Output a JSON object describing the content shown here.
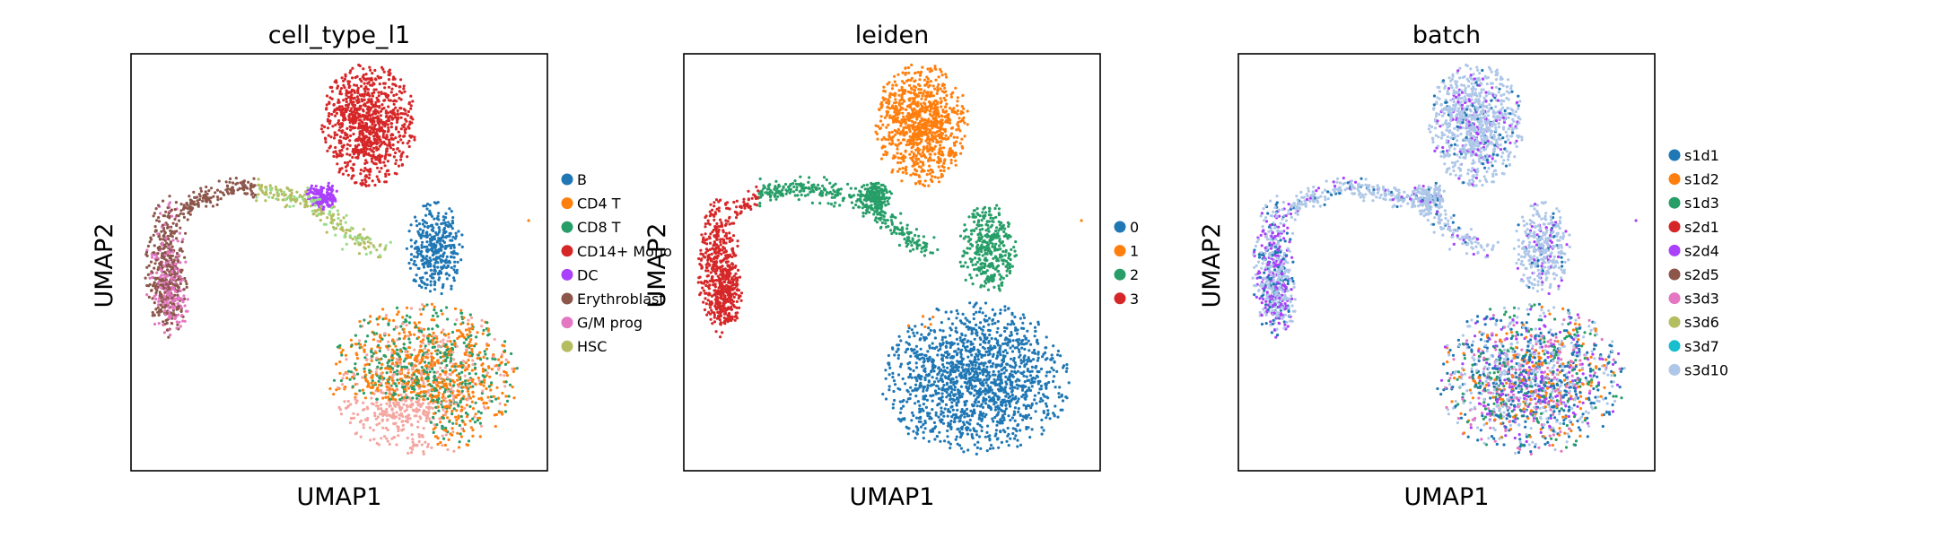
{
  "figure": {
    "panels": [
      {
        "title": "cell_type_l1",
        "xlabel": "UMAP1",
        "ylabel": "UMAP2"
      },
      {
        "title": "leiden",
        "xlabel": "UMAP1",
        "ylabel": "UMAP2"
      },
      {
        "title": "batch",
        "xlabel": "UMAP1",
        "ylabel": "UMAP2"
      }
    ]
  },
  "chart_data": [
    {
      "type": "scatter",
      "title": "cell_type_l1",
      "xlabel": "UMAP1",
      "ylabel": "UMAP2",
      "ticks": "none",
      "legend": "right",
      "legend_entries": [
        {
          "label": "B",
          "color": "#1f77b4"
        },
        {
          "label": "CD4 T",
          "color": "#ff7f0e"
        },
        {
          "label": "CD8 T",
          "color": "#279e68"
        },
        {
          "label": "CD14+ Mono",
          "color": "#d62728"
        },
        {
          "label": "DC",
          "color": "#aa40fc"
        },
        {
          "label": "Erythroblast",
          "color": "#8c564b"
        },
        {
          "label": "G/M prog",
          "color": "#e377c2"
        },
        {
          "label": "HSC",
          "color": "#b5bd61"
        }
      ]
    },
    {
      "type": "scatter",
      "title": "leiden",
      "xlabel": "UMAP1",
      "ylabel": "UMAP2",
      "ticks": "none",
      "legend": "right",
      "legend_entries": [
        {
          "label": "0",
          "color": "#1f77b4"
        },
        {
          "label": "1",
          "color": "#ff7f0e"
        },
        {
          "label": "2",
          "color": "#279e68"
        },
        {
          "label": "3",
          "color": "#d62728"
        }
      ]
    },
    {
      "type": "scatter",
      "title": "batch",
      "xlabel": "UMAP1",
      "ylabel": "UMAP2",
      "ticks": "none",
      "legend": "right",
      "legend_entries": [
        {
          "label": "s1d1",
          "color": "#1f77b4"
        },
        {
          "label": "s1d2",
          "color": "#ff7f0e"
        },
        {
          "label": "s1d3",
          "color": "#279e68"
        },
        {
          "label": "s2d1",
          "color": "#d62728"
        },
        {
          "label": "s2d4",
          "color": "#aa40fc"
        },
        {
          "label": "s2d5",
          "color": "#8c564b"
        },
        {
          "label": "s3d3",
          "color": "#e377c2"
        },
        {
          "label": "s3d6",
          "color": "#b5bd61"
        },
        {
          "label": "s3d7",
          "color": "#17becf"
        },
        {
          "label": "s3d10",
          "color": "#aec7e8"
        }
      ]
    }
  ]
}
